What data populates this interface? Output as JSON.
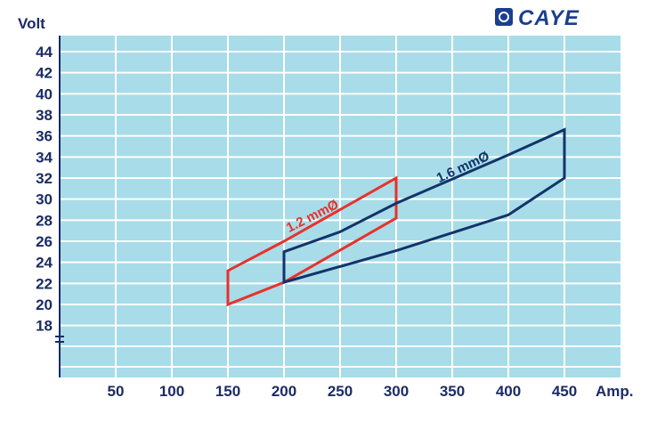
{
  "logo": {
    "text": "CAYE",
    "color": "#1b3f8f"
  },
  "chart_data": {
    "type": "line",
    "title": "",
    "xlabel": "Amp.",
    "ylabel": "Volt",
    "xlim": [
      0,
      500
    ],
    "ylim": [
      15,
      46
    ],
    "x_ticks": [
      50,
      100,
      150,
      200,
      250,
      300,
      350,
      400,
      450
    ],
    "y_ticks": [
      18,
      20,
      22,
      24,
      26,
      28,
      30,
      32,
      34,
      36,
      38,
      40,
      42,
      44
    ],
    "y_axis_break": true,
    "grid": true,
    "plot_background": "#a8dce8",
    "grid_color": "#ffffff",
    "series": [
      {
        "name": "1.2 mmØ",
        "color": "#e8312c",
        "closed": true,
        "points": [
          [
            150,
            20.0
          ],
          [
            150,
            23.2
          ],
          [
            200,
            26.0
          ],
          [
            300,
            32.0
          ],
          [
            300,
            28.2
          ],
          [
            200,
            22.1
          ]
        ]
      },
      {
        "name": "1.6 mmØ",
        "color": "#12336b",
        "closed": true,
        "points": [
          [
            200,
            22.1
          ],
          [
            200,
            25.0
          ],
          [
            250,
            26.9
          ],
          [
            300,
            29.6
          ],
          [
            400,
            34.2
          ],
          [
            450,
            36.6
          ],
          [
            450,
            32.0
          ],
          [
            400,
            28.5
          ],
          [
            300,
            25.1
          ]
        ]
      }
    ]
  }
}
